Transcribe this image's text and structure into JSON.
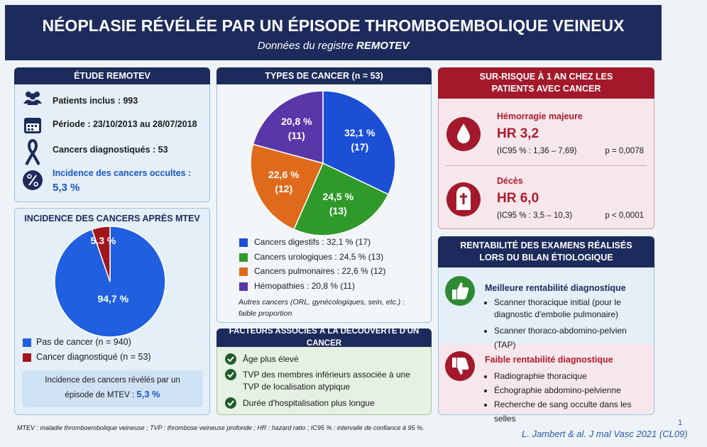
{
  "header": {
    "title": "NÉOPLASIE RÉVÉLÉE PAR UN ÉPISODE THROMBOEMBOLIQUE VEINEUX",
    "subtitle": "Données du registre",
    "subtitle_emphasis": "REMOTEV"
  },
  "study": {
    "title": "ÉTUDE REMOTEV",
    "items": [
      "Patients inclus : 993",
      "Période : 23/10/2013 au 28/07/2018",
      "Cancers diagnostiqués : 53",
      "Incidence des cancers occultes :"
    ],
    "highlight": "5,3 %"
  },
  "incidence": {
    "title": "INCIDENCE DES CANCERS APRÈS MTEV",
    "pie": {
      "values": [
        94.7,
        5.3
      ],
      "value_labels": [
        "94,7 %",
        "5,3 %"
      ],
      "colors": [
        "#1f5fe0",
        "#a0161c"
      ]
    },
    "legend": [
      "Pas de cancer (n = 940)",
      "Cancer diagnostiqué (n = 53)"
    ],
    "note": "Incidence des cancers révélés par un épisode de MTEV :",
    "note_value": "5,3 %"
  },
  "types": {
    "title": "TYPES DE CANCER (n = 53)",
    "pie": {
      "values": [
        32.1,
        24.5,
        22.6,
        20.8
      ],
      "value_labels": [
        "32,1 %",
        "24,5 %",
        "22,6 %",
        "20,8 %"
      ],
      "counts": [
        "(17)",
        "(13)",
        "(12)",
        "(11)"
      ],
      "colors": [
        "#1a4fd6",
        "#2f9a2a",
        "#e06a1c",
        "#5a37a8"
      ]
    },
    "legend": [
      "Cancers digestifs : 32,1 % (17)",
      "Cancers urologiques : 24,5 % (13)",
      "Cancers pulmonaires : 22,6 % (12)",
      "Hémopathies : 20,8 % (11)"
    ],
    "note": "Autres cancers (ORL, gynécologiques, sein, etc.) : faible proportion"
  },
  "factors": {
    "title": "FACTEURS ASSOCIÉS À LA DÉCOUVERTE D'UN CANCER",
    "items": [
      "Âge plus élevé",
      "TVP des membres inférieurs associée à une TVP de localisation atypique",
      "Durée d'hospitalisation plus longue"
    ]
  },
  "risk": {
    "title": "SUR-RISQUE À 1 AN CHEZ LES PATIENTS AVEC CANCER",
    "items": [
      {
        "label": "Hémorragie majeure",
        "hr": "HR 3,2",
        "ci": "(IC95 % : 1,36 – 7,69)",
        "p": "p = 0,0078"
      },
      {
        "label": "Décès",
        "hr": "HR 6,0",
        "ci": "(IC95 % : 3,5 – 10,3)",
        "p": "p < 0,0001"
      }
    ]
  },
  "yield": {
    "title": "RENTABILITÉ DES EXAMENS RÉALISÉS LORS DU BILAN ÉTIOLOGIQUE",
    "best": {
      "title": "Meilleure rentabilité diagnostique",
      "items": [
        "Scanner thoracique initial (pour le diagnostic d'embolie pulmonaire)",
        "Scanner thoraco-abdomino-pelvien (TAP)"
      ]
    },
    "worst": {
      "title": "Faible rentabilité diagnostique",
      "items": [
        "Radiographie thoracique",
        "Échographie abdomino-pelvienne",
        "Recherche de sang occulte dans les selles"
      ]
    }
  },
  "footer": {
    "note": "MTEV : maladie thromboembolique veineuse ; TVP : thrombose veineuse profonde ; HR : hazard ratio ; IC95 % : intervalle de confiance à 95 %.",
    "citation": "L. Jambert & al. J mal Vasc 2021 (CL09)",
    "page": "1"
  }
}
